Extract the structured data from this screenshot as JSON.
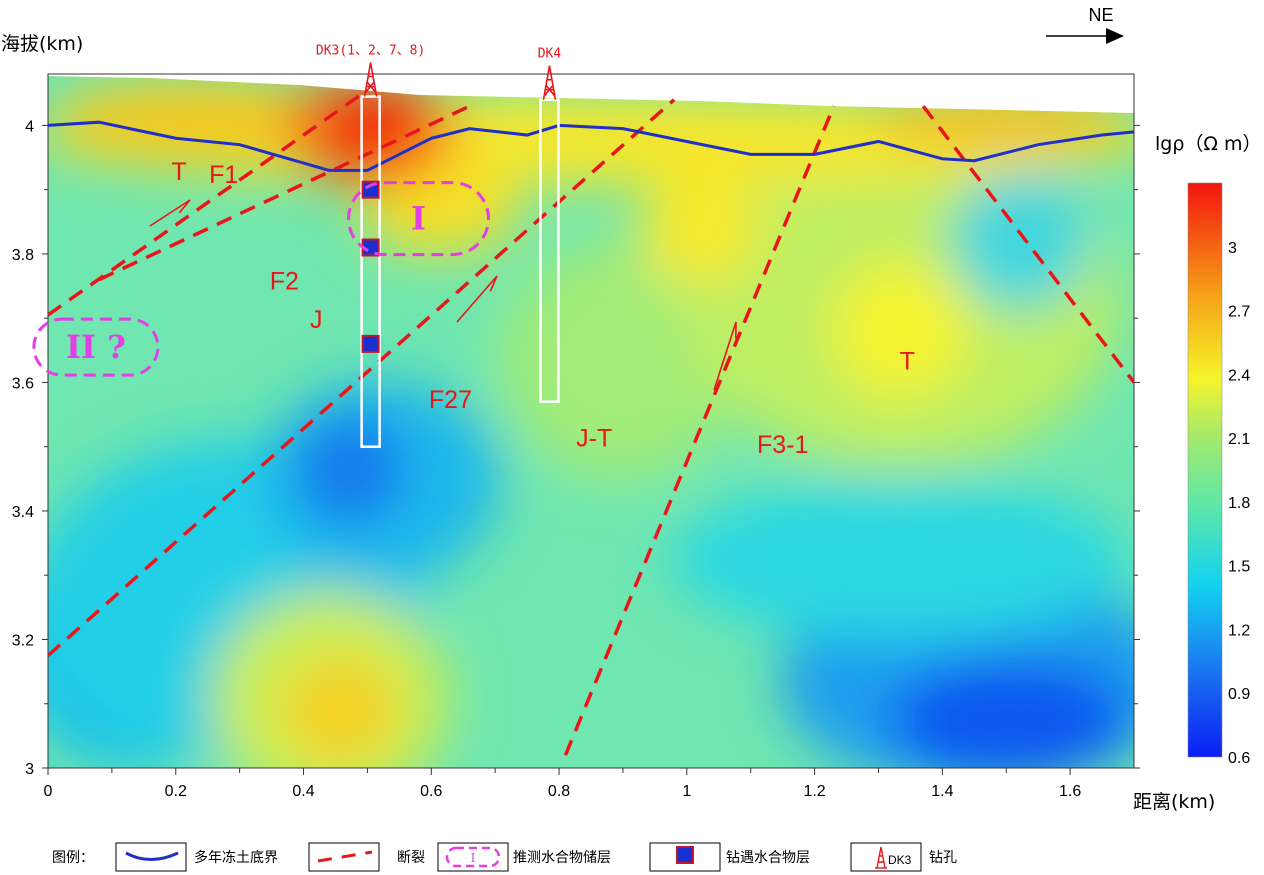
{
  "chart_data": {
    "type": "heatmap",
    "title": "",
    "direction": "NE",
    "xlabel": "距离(km)",
    "ylabel": "海拔(km)",
    "xlim": [
      0,
      1.7
    ],
    "ylim": [
      3.0,
      4.08
    ],
    "x_ticks": [
      "0",
      "0.2",
      "0.4",
      "0.6",
      "0.8",
      "1",
      "1.2",
      "1.4",
      "1.6"
    ],
    "y_ticks": [
      "3",
      "3.2",
      "3.4",
      "3.6",
      "3.8",
      "4"
    ],
    "colorbar": {
      "title": "lgρ（Ω m）",
      "range": [
        0.6,
        3.3
      ],
      "tick_labels": [
        "3",
        "2.7",
        "2.4",
        "2.1",
        "1.8",
        "1.5",
        "1.2",
        "0.9",
        "0.6"
      ]
    },
    "permafrost_base": {
      "x": [
        0,
        0.08,
        0.2,
        0.3,
        0.44,
        0.5,
        0.6,
        0.66,
        0.75,
        0.8,
        0.9,
        1.0,
        1.1,
        1.2,
        1.3,
        1.4,
        1.45,
        1.55,
        1.65,
        1.7
      ],
      "y": [
        4.0,
        4.005,
        3.98,
        3.97,
        3.93,
        3.93,
        3.98,
        3.995,
        3.985,
        4.0,
        3.995,
        3.975,
        3.955,
        3.955,
        3.975,
        3.948,
        3.945,
        3.97,
        3.985,
        3.99
      ]
    },
    "faults": [
      {
        "name": "F1",
        "x": [
          0.0,
          0.5
        ],
        "y": [
          3.705,
          4.055
        ]
      },
      {
        "name": "F2",
        "x": [
          0.08,
          0.66
        ],
        "y": [
          3.76,
          4.03
        ]
      },
      {
        "name": "F27",
        "x": [
          0.0,
          0.98
        ],
        "y": [
          3.175,
          4.04
        ]
      },
      {
        "name": "F3-1",
        "x": [
          0.81,
          1.23
        ],
        "y": [
          3.02,
          4.03
        ]
      },
      {
        "name": "",
        "x": [
          1.37,
          1.7
        ],
        "y": [
          4.03,
          3.6
        ]
      }
    ],
    "wells": [
      {
        "name": "DK3(1、2、7、8)",
        "x": 0.505,
        "top": 4.045,
        "bottom": 3.5
      },
      {
        "name": "DK4",
        "x": 0.785,
        "top": 4.04,
        "bottom": 3.57
      }
    ],
    "hydrate_layers": [
      {
        "x": 0.505,
        "y": 3.9
      },
      {
        "x": 0.505,
        "y": 3.81
      },
      {
        "x": 0.505,
        "y": 3.66
      }
    ],
    "inferred_zones": [
      {
        "label": "I",
        "x": 0.58,
        "y": 3.855
      },
      {
        "label": "II ?",
        "x": 0.075,
        "y": 3.655
      }
    ],
    "labels": [
      {
        "text": "T",
        "x": 0.205,
        "y": 3.915
      },
      {
        "text": "F1",
        "x": 0.275,
        "y": 3.91
      },
      {
        "text": "F2",
        "x": 0.37,
        "y": 3.745
      },
      {
        "text": "J",
        "x": 0.42,
        "y": 3.685
      },
      {
        "text": "F27",
        "x": 0.63,
        "y": 3.56
      },
      {
        "text": "J-T",
        "x": 0.855,
        "y": 3.5
      },
      {
        "text": "F3-1",
        "x": 1.15,
        "y": 3.49
      },
      {
        "text": "T",
        "x": 1.345,
        "y": 3.62
      }
    ]
  },
  "legend": {
    "title": "图例：",
    "items": [
      {
        "key": "permafrost",
        "label": "多年冻土底界"
      },
      {
        "key": "fault",
        "label": "断裂"
      },
      {
        "key": "inferred",
        "label": "推测水合物储层",
        "sample": "I"
      },
      {
        "key": "hydrate",
        "label": "钻遇水合物层"
      },
      {
        "key": "well",
        "label": "钻孔",
        "sample": "DK3"
      }
    ]
  },
  "colors": {
    "permafrost": "#1f2fc7",
    "fault": "#e8161a",
    "zone": "#e43ee6",
    "hydrate_fill": "#1a2fd0",
    "hydrate_edge": "#c2162e"
  }
}
